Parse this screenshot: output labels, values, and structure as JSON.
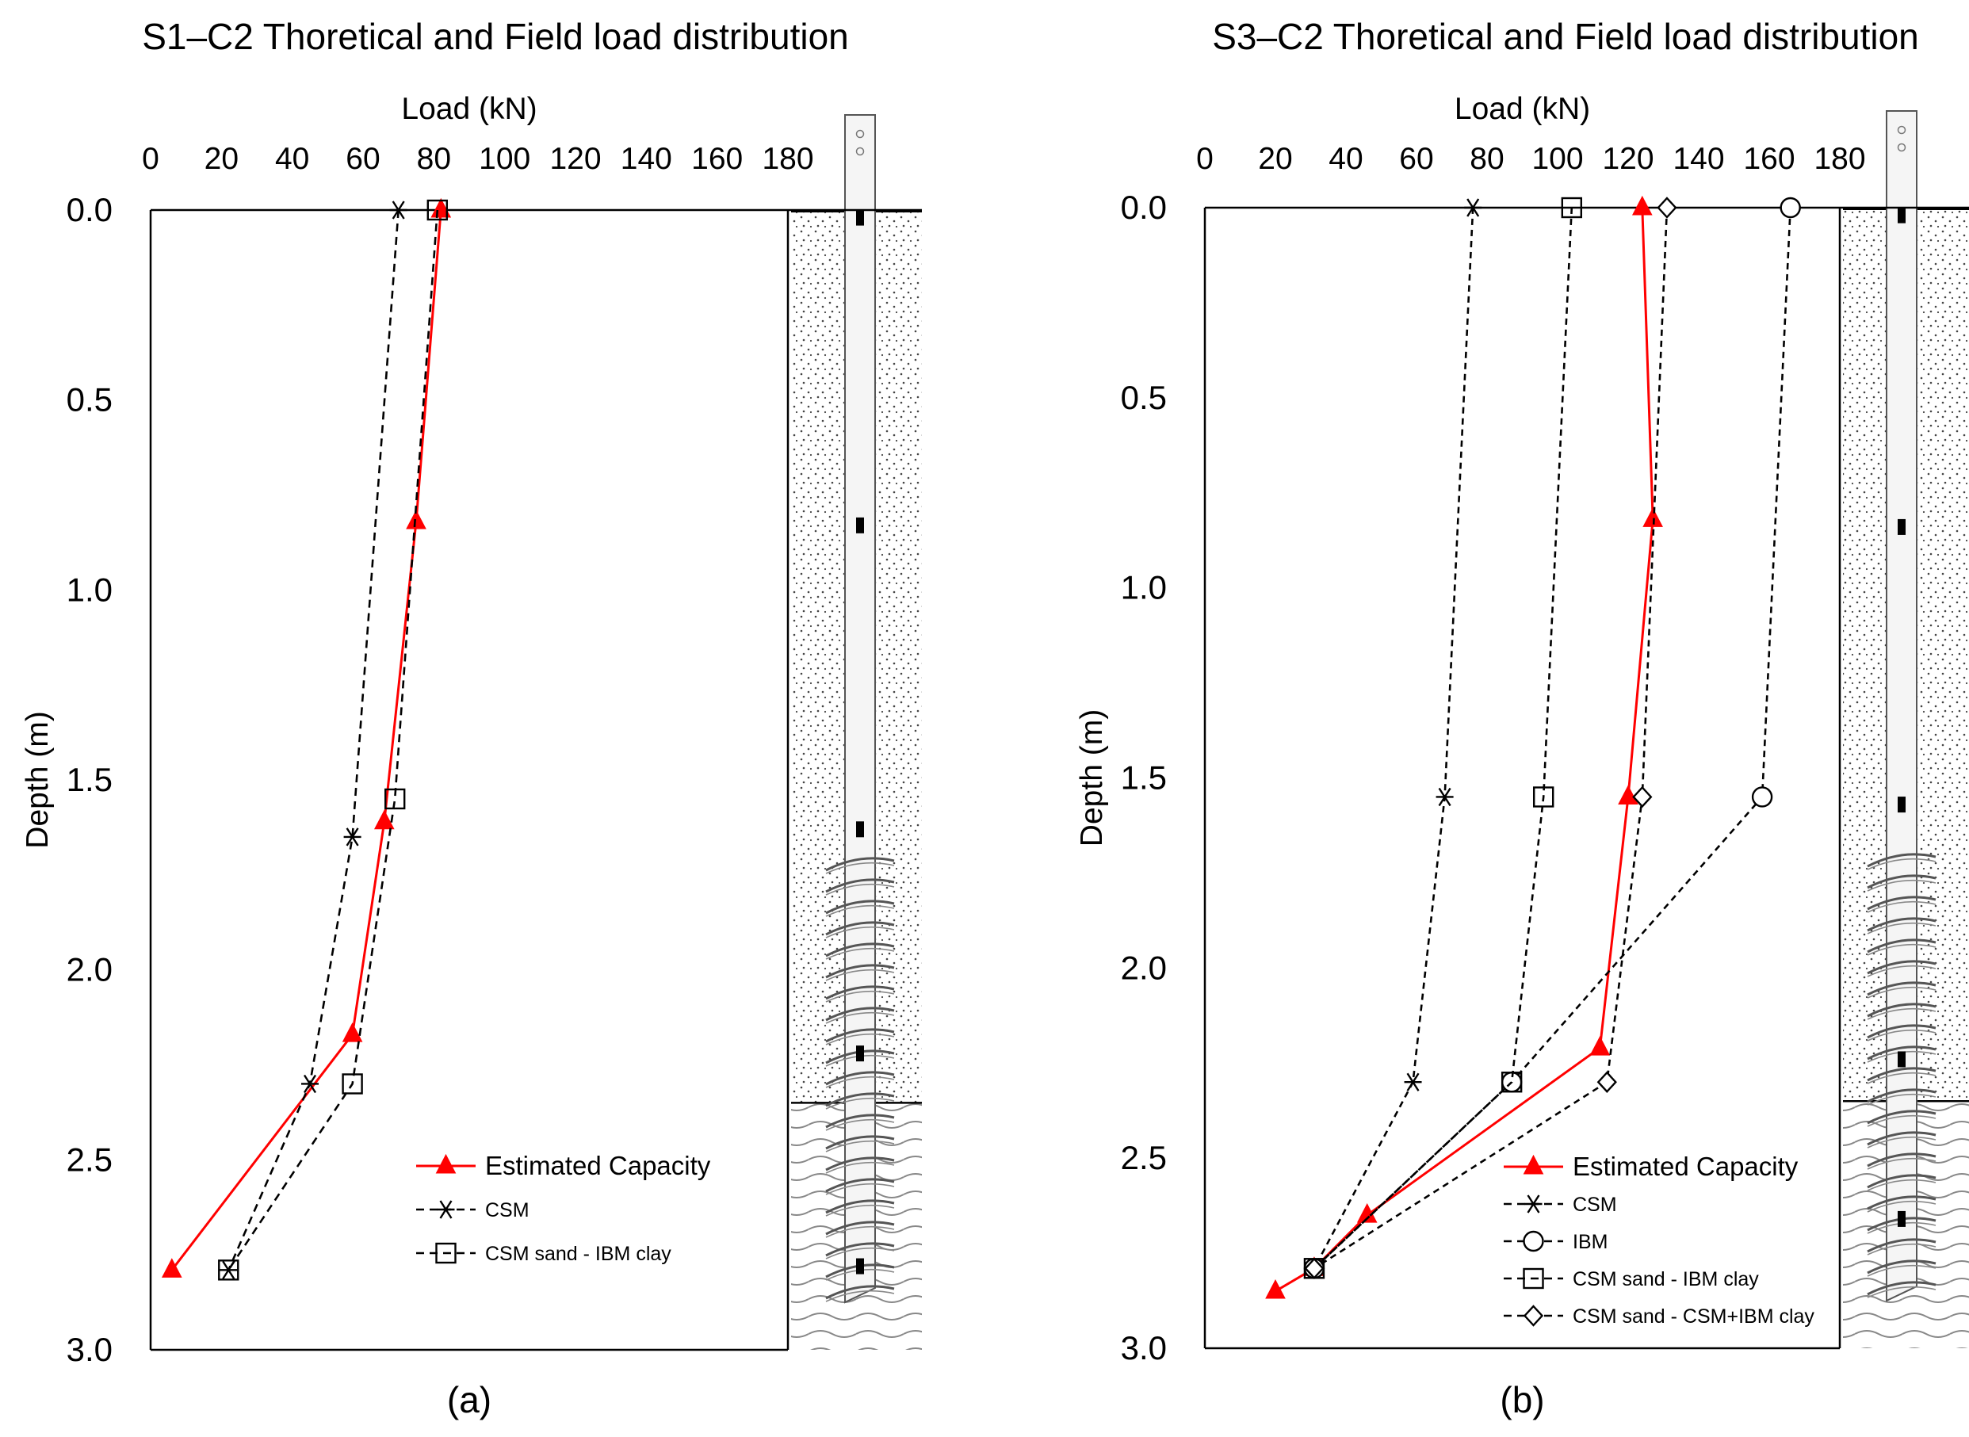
{
  "colors": {
    "estimated": "#ff0000",
    "theory": "#000000",
    "sand_fill": "#ffffff",
    "pile": "#f5f5f5"
  },
  "chart_data": [
    {
      "type": "line",
      "title": "S1–C2 Thoretical and Field load distribution",
      "xlabel": "Load (kN)",
      "ylabel": "Depth (m)",
      "caption": "(a)",
      "xlim": [
        0,
        180
      ],
      "ylim": [
        3.0,
        0.0
      ],
      "x_ticks": [
        "0",
        "20",
        "40",
        "60",
        "80",
        "100",
        "120",
        "140",
        "160",
        "180"
      ],
      "y_ticks": [
        "0.0",
        "0.5",
        "1.0",
        "1.5",
        "2.0",
        "2.5",
        "3.0"
      ],
      "soil_boundary_depth": 2.35,
      "series": [
        {
          "name": "Estimated Capacity",
          "style": "red-solid-triangle",
          "x": [
            82,
            75,
            66,
            57,
            6
          ],
          "y": [
            0.0,
            0.82,
            1.61,
            2.17,
            2.79
          ]
        },
        {
          "name": "CSM",
          "style": "dash-asterisk",
          "x": [
            70,
            57,
            45,
            22
          ],
          "y": [
            0.0,
            1.65,
            2.3,
            2.79
          ]
        },
        {
          "name": "CSM sand - IBM clay",
          "style": "dash-square",
          "x": [
            81,
            69,
            57,
            22
          ],
          "y": [
            0.0,
            1.55,
            2.3,
            2.79
          ]
        }
      ]
    },
    {
      "type": "line",
      "title": "S3–C2 Thoretical and Field load distribution",
      "xlabel": "Load (kN)",
      "ylabel": "Depth (m)",
      "caption": "(b)",
      "xlim": [
        0,
        180
      ],
      "ylim": [
        3.0,
        0.0
      ],
      "x_ticks": [
        "0",
        "20",
        "40",
        "60",
        "80",
        "100",
        "120",
        "140",
        "160",
        "180"
      ],
      "y_ticks": [
        "0.0",
        "0.5",
        "1.0",
        "1.5",
        "2.0",
        "2.5",
        "3.0"
      ],
      "soil_boundary_depth": 2.35,
      "series": [
        {
          "name": "Estimated Capacity",
          "style": "red-solid-triangle",
          "x": [
            124,
            127,
            120,
            112,
            46,
            31,
            20
          ],
          "y": [
            0.0,
            0.82,
            1.55,
            2.21,
            2.65,
            2.79,
            2.85
          ]
        },
        {
          "name": "CSM",
          "style": "dash-asterisk",
          "x": [
            76,
            68,
            59,
            31
          ],
          "y": [
            0.0,
            1.55,
            2.3,
            2.79
          ]
        },
        {
          "name": "IBM",
          "style": "dash-circle",
          "x": [
            166,
            158,
            87,
            31
          ],
          "y": [
            0.0,
            1.55,
            2.3,
            2.79
          ]
        },
        {
          "name": "CSM sand - IBM clay",
          "style": "dash-square",
          "x": [
            104,
            96,
            87,
            31
          ],
          "y": [
            0.0,
            1.55,
            2.3,
            2.79
          ]
        },
        {
          "name": "CSM sand - CSM+IBM clay",
          "style": "dash-diamond",
          "x": [
            131,
            124,
            114,
            31
          ],
          "y": [
            0.0,
            1.55,
            2.3,
            2.79
          ]
        }
      ]
    }
  ]
}
